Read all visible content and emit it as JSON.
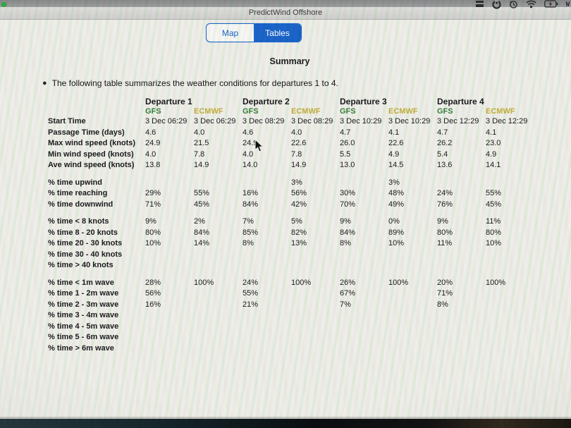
{
  "menubar": {
    "icons": [
      "list-icon",
      "app-circle-icon",
      "time-machine-icon",
      "wifi-icon",
      "battery-charging-icon"
    ]
  },
  "window": {
    "title": "PredictWind Offshore"
  },
  "view_toggle": {
    "map_label": "Map",
    "tables_label": "Tables",
    "active": "Tables"
  },
  "summary": {
    "heading": "Summary",
    "bullet_text": "The following table summarizes the weather conditions for departures 1 to 4."
  },
  "colors": {
    "accent_blue": "#1b64cb",
    "gfs_green": "#37813c",
    "ecmwf_yellow": "#c2ae3b"
  },
  "table": {
    "departures": [
      "Departure 1",
      "Departure 2",
      "Departure 3",
      "Departure 4"
    ],
    "model_labels": [
      "GFS",
      "ECMWF"
    ],
    "sections": [
      {
        "rows": [
          {
            "label": "Start Time",
            "values": [
              "3 Dec 06:29",
              "3 Dec 06:29",
              "3 Dec 08:29",
              "3 Dec 08:29",
              "3 Dec 10:29",
              "3 Dec 10:29",
              "3 Dec 12:29",
              "3 Dec 12:29"
            ]
          },
          {
            "label": "Passage Time (days)",
            "values": [
              "4.6",
              "4.0",
              "4.6",
              "4.0",
              "4.7",
              "4.1",
              "4.7",
              "4.1"
            ]
          },
          {
            "label": "Max wind speed (knots)",
            "values": [
              "24.9",
              "21.5",
              "24.9",
              "22.6",
              "26.0",
              "22.6",
              "26.2",
              "23.0"
            ]
          },
          {
            "label": "Min wind speed (knots)",
            "values": [
              "4.0",
              "7.8",
              "4.0",
              "7.8",
              "5.5",
              "4.9",
              "5.4",
              "4.9"
            ]
          },
          {
            "label": "Ave wind speed (knots)",
            "values": [
              "13.8",
              "14.9",
              "14.0",
              "14.9",
              "13.0",
              "14.5",
              "13.6",
              "14.1"
            ]
          }
        ]
      },
      {
        "rows": [
          {
            "label": "% time upwind",
            "values": [
              "",
              "",
              "",
              "3%",
              "",
              "3%",
              "",
              ""
            ]
          },
          {
            "label": "% time reaching",
            "values": [
              "29%",
              "55%",
              "16%",
              "56%",
              "30%",
              "48%",
              "24%",
              "55%"
            ]
          },
          {
            "label": "% time downwind",
            "values": [
              "71%",
              "45%",
              "84%",
              "42%",
              "70%",
              "49%",
              "76%",
              "45%"
            ]
          }
        ]
      },
      {
        "rows": [
          {
            "label": "% time < 8 knots",
            "values": [
              "9%",
              "2%",
              "7%",
              "5%",
              "9%",
              "0%",
              "9%",
              "11%"
            ]
          },
          {
            "label": "% time 8 - 20 knots",
            "values": [
              "80%",
              "84%",
              "85%",
              "82%",
              "84%",
              "89%",
              "80%",
              "80%"
            ]
          },
          {
            "label": "% time 20 - 30 knots",
            "values": [
              "10%",
              "14%",
              "8%",
              "13%",
              "8%",
              "10%",
              "11%",
              "10%"
            ]
          },
          {
            "label": "% time 30 - 40 knots",
            "values": [
              "",
              "",
              "",
              "",
              "",
              "",
              "",
              ""
            ]
          },
          {
            "label": "% time > 40 knots",
            "values": [
              "",
              "",
              "",
              "",
              "",
              "",
              "",
              ""
            ]
          }
        ]
      },
      {
        "rows": [
          {
            "label": "% time < 1m wave",
            "values": [
              "28%",
              "100%",
              "24%",
              "100%",
              "26%",
              "100%",
              "20%",
              "100%"
            ]
          },
          {
            "label": "% time 1 - 2m wave",
            "values": [
              "56%",
              "",
              "55%",
              "",
              "67%",
              "",
              "71%",
              ""
            ]
          },
          {
            "label": "% time 2 - 3m wave",
            "values": [
              "16%",
              "",
              "21%",
              "",
              "7%",
              "",
              "8%",
              ""
            ]
          },
          {
            "label": "% time 3 - 4m wave",
            "values": [
              "",
              "",
              "",
              "",
              "",
              "",
              "",
              ""
            ]
          },
          {
            "label": "% time 4 - 5m wave",
            "values": [
              "",
              "",
              "",
              "",
              "",
              "",
              "",
              ""
            ]
          },
          {
            "label": "% time 5 - 6m wave",
            "values": [
              "",
              "",
              "",
              "",
              "",
              "",
              "",
              ""
            ]
          },
          {
            "label": "% time > 6m wave",
            "values": [
              "",
              "",
              "",
              "",
              "",
              "",
              "",
              ""
            ]
          }
        ]
      }
    ]
  }
}
